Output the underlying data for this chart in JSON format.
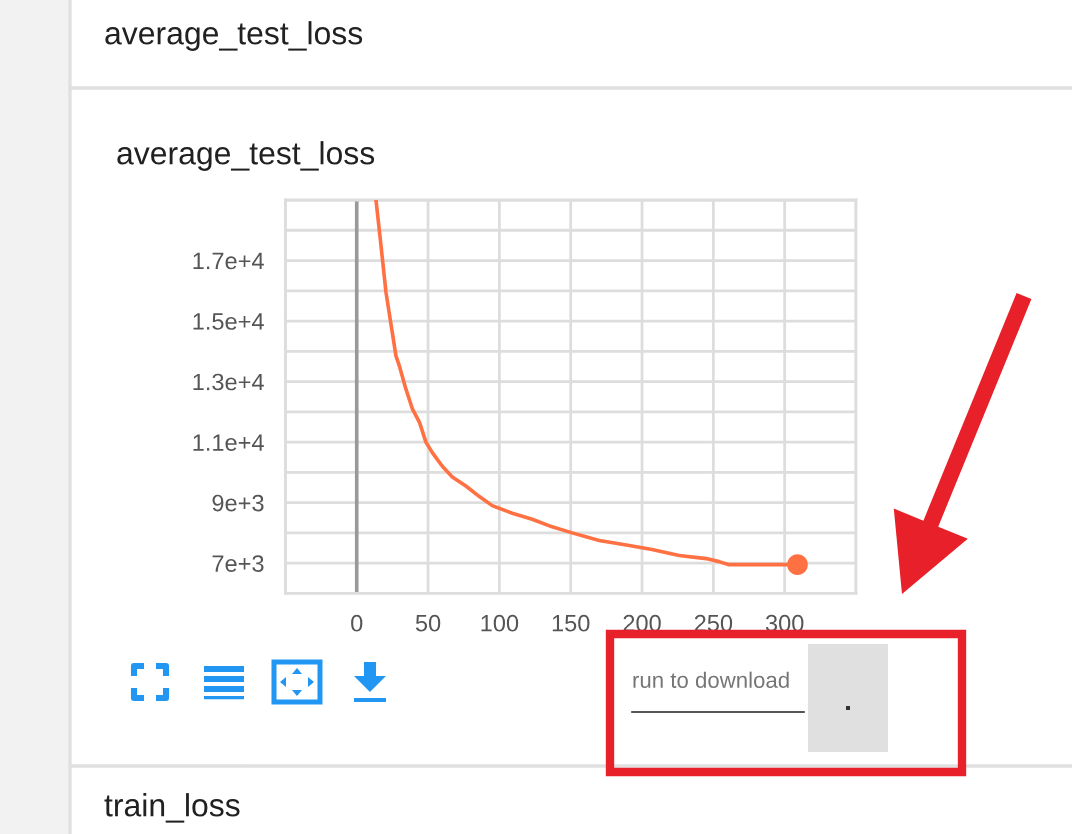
{
  "chart_data": {
    "type": "line",
    "title": "average_test_loss",
    "annotations": [
      "average_test_loss",
      "run to download",
      "train_loss"
    ],
    "xlim": [
      -50,
      350
    ],
    "xticks": [
      {
        "value": -50,
        "label": null
      },
      0,
      50,
      100,
      150,
      200,
      250,
      300,
      {
        "value": 350,
        "label": null
      }
    ],
    "ylim": [
      6000,
      19000
    ],
    "yticks": [
      {
        "value": 6000,
        "label": null
      },
      {
        "value": 7000,
        "label": "7e+3"
      },
      {
        "value": 8000,
        "label": null
      },
      {
        "value": 9000,
        "label": "9e+3"
      },
      {
        "value": 10000,
        "label": null
      },
      {
        "value": 11000,
        "label": "1.1e+4"
      },
      {
        "value": 12000,
        "label": null
      },
      {
        "value": 13000,
        "label": "1.3e+4"
      },
      {
        "value": 14000,
        "label": null
      },
      {
        "value": 15000,
        "label": "1.5e+4"
      },
      {
        "value": 16000,
        "label": null
      },
      {
        "value": 17000,
        "label": "1.7e+4"
      },
      {
        "value": 18000,
        "label": null
      },
      {
        "value": 19000,
        "label": null
      }
    ],
    "grid": true,
    "ref_lines": [
      {
        "axis": "x",
        "value": 0,
        "color": "#999999"
      }
    ],
    "series": [
      {
        "color": "#ff7043",
        "x": [
          13.5,
          17,
          20.5,
          23,
          25,
          27.5,
          30,
          34.5,
          39,
          44,
          48.5,
          53,
          60,
          67,
          76.5,
          86,
          95,
          109,
          123,
          137,
          151,
          170,
          189,
          207,
          226,
          245,
          254,
          261,
          278,
          296,
          309
        ],
        "values": [
          19000,
          17500,
          15950,
          15200,
          14600,
          13850,
          13500,
          12750,
          12100,
          11650,
          11000,
          10650,
          10200,
          9850,
          9550,
          9200,
          8900,
          8650,
          8450,
          8200,
          8000,
          7750,
          7600,
          7450,
          7250,
          7150,
          7050,
          6950,
          6950,
          6950,
          6950
        ]
      },
      {
        "type": "scatter",
        "color": "#ff7043",
        "marker": "circle",
        "x": [
          309
        ],
        "values": [
          6950
        ]
      }
    ]
  }
}
